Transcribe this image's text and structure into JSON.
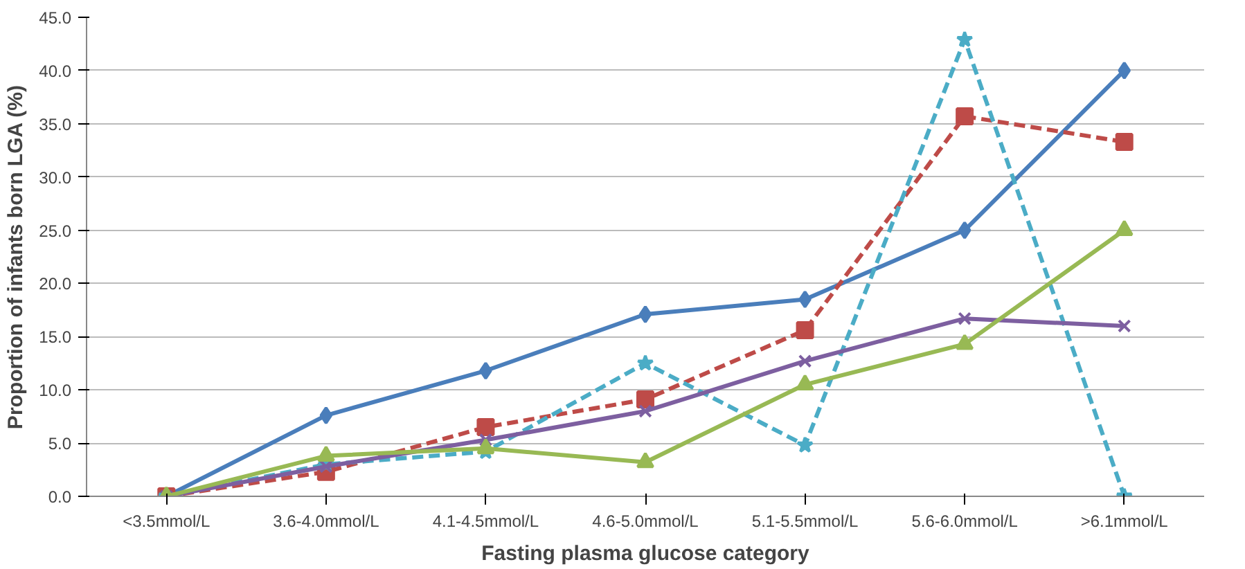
{
  "chart_data": {
    "type": "line",
    "xlabel": "Fasting plasma glucose category",
    "ylabel": "Proportion of infants born LGA (%)",
    "categories": [
      "<3.5mmol/L",
      "3.6-4.0mmol/L",
      "4.1-4.5mmol/L",
      "4.6-5.0mmol/L",
      "5.1-5.5mmol/L",
      "5.6-6.0mmol/L",
      ">6.1mmol/L"
    ],
    "ylim": [
      0,
      45
    ],
    "yticks": [
      {
        "value": 0,
        "label": "0.0"
      },
      {
        "value": 5,
        "label": "5.0"
      },
      {
        "value": 10,
        "label": "10.0"
      },
      {
        "value": 15,
        "label": "15.0"
      },
      {
        "value": 20,
        "label": "20.0"
      },
      {
        "value": 25,
        "label": "25.0"
      },
      {
        "value": 30,
        "label": "30.0"
      },
      {
        "value": 35,
        "label": "35.0"
      },
      {
        "value": 40,
        "label": "40.0"
      },
      {
        "value": 45,
        "label": "45.0"
      }
    ],
    "grid": "y",
    "series": [
      {
        "color": "#4a7ebb",
        "marker": "diamond",
        "line_style": "solid",
        "values": [
          0,
          7.6,
          11.8,
          17.1,
          18.5,
          25.0,
          40.0
        ]
      },
      {
        "color": "#be4b48",
        "marker": "square",
        "line_style": "dashed",
        "values": [
          0,
          2.3,
          6.5,
          9.1,
          15.6,
          35.7,
          33.3
        ]
      },
      {
        "color": "#4bacc6",
        "marker": "star",
        "line_style": "dashed",
        "values": [
          0,
          3.0,
          4.2,
          12.5,
          4.8,
          42.9,
          0
        ]
      },
      {
        "color": "#7d5fa0",
        "marker": "cross",
        "line_style": "solid",
        "values": [
          0,
          2.8,
          5.3,
          8.0,
          12.7,
          16.7,
          16.0
        ]
      },
      {
        "color": "#98b954",
        "marker": "triangle",
        "line_style": "solid",
        "values": [
          0,
          3.8,
          4.5,
          3.2,
          10.5,
          14.3,
          25.0
        ]
      }
    ]
  }
}
